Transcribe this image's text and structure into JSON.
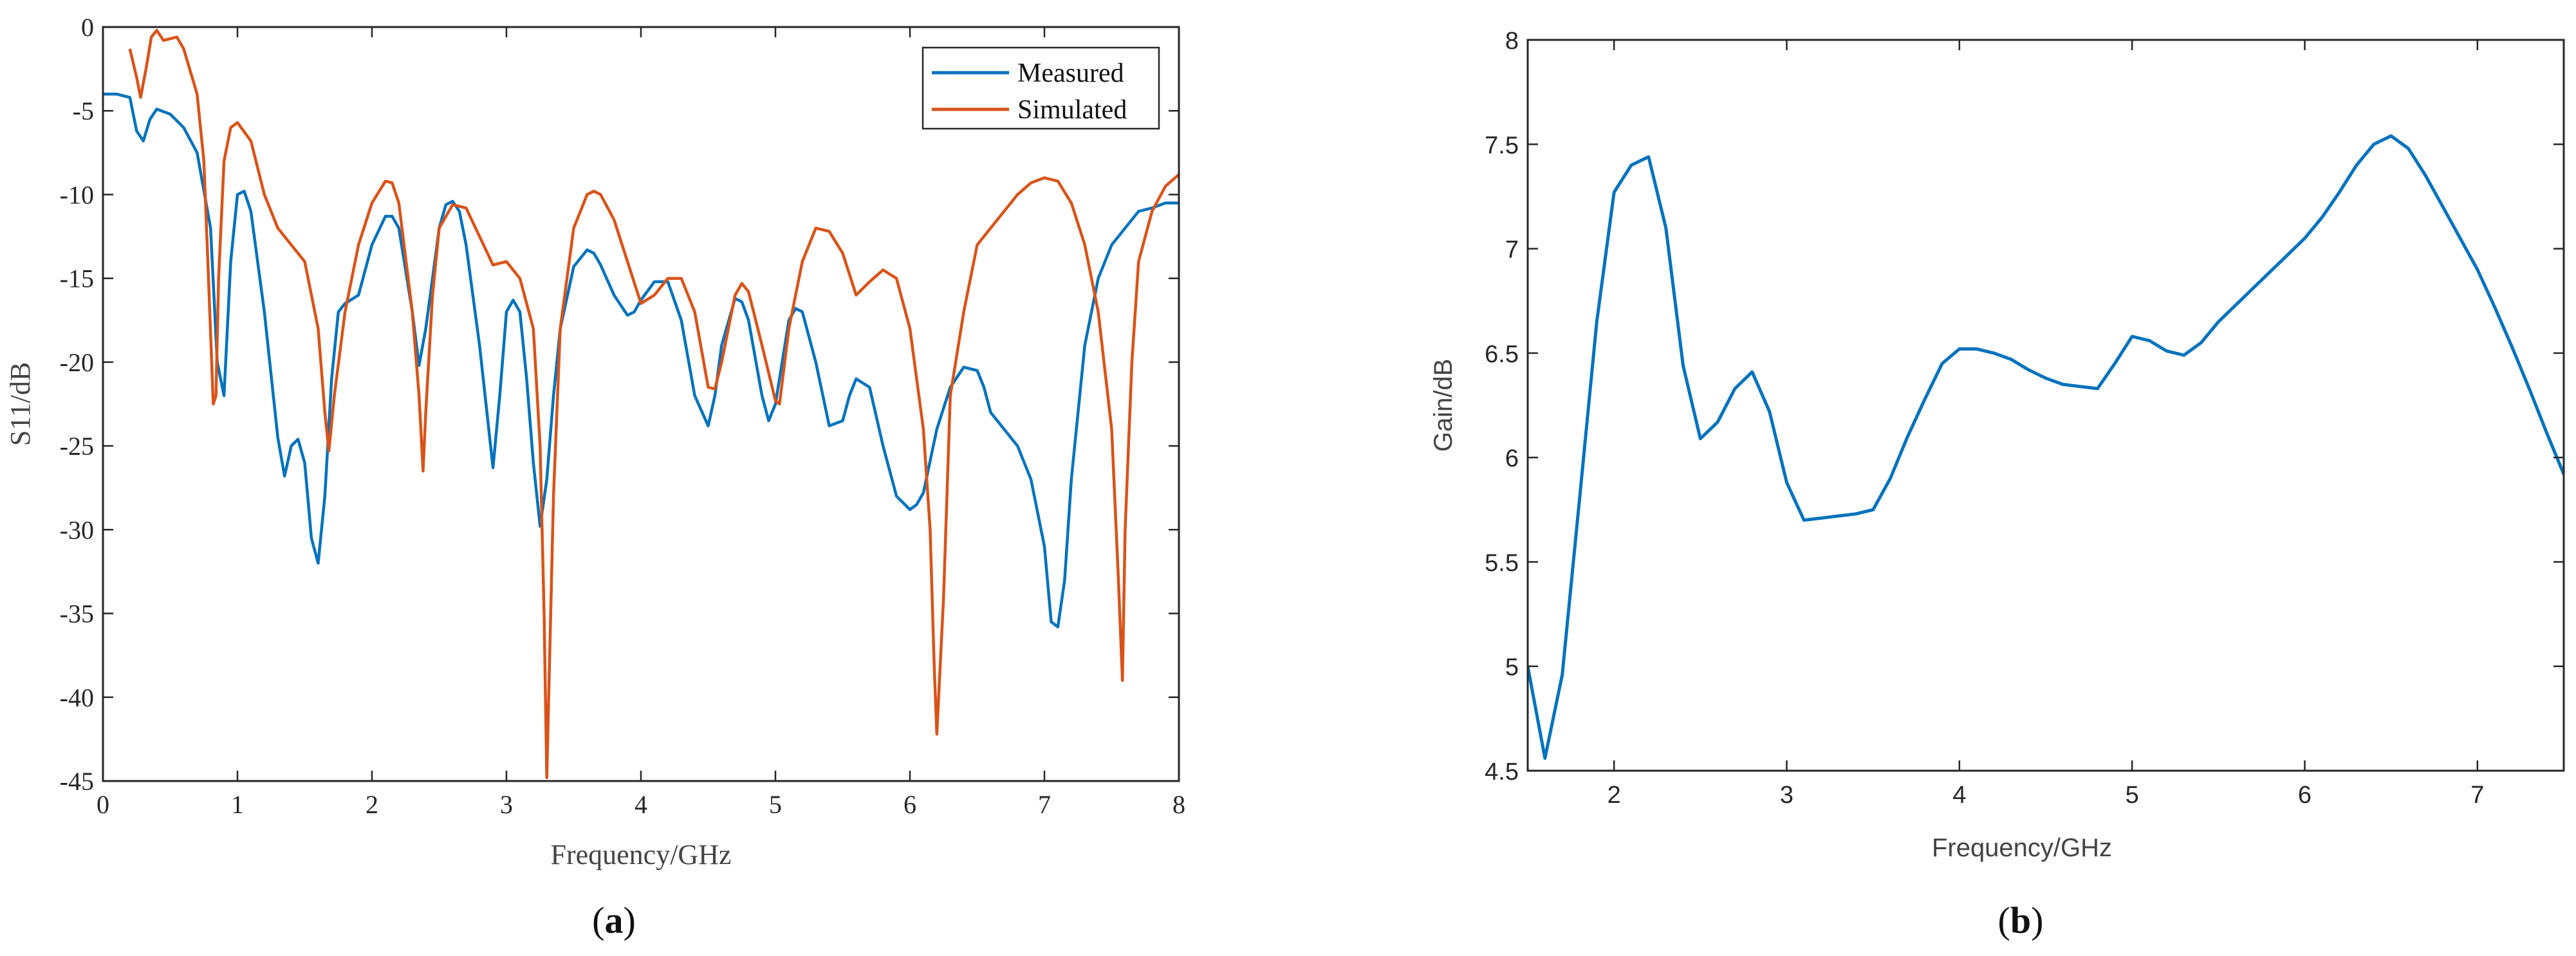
{
  "chart_data": [
    {
      "type": "line",
      "panel_caption": "(a)",
      "xlabel": "Frequency/GHz",
      "ylabel": "S11/dB",
      "xlim": [
        0,
        8
      ],
      "ylim": [
        -45,
        0
      ],
      "x_ticks": [
        "0",
        "1",
        "2",
        "3",
        "4",
        "5",
        "6",
        "7",
        "8"
      ],
      "y_ticks": [
        "0",
        "-5",
        "-10",
        "-15",
        "-20",
        "-25",
        "-30",
        "-35",
        "-40",
        "-45"
      ],
      "grid": false,
      "legend_position": "top-right",
      "series": [
        {
          "name": "Measured",
          "color": "#0072BD",
          "x": [
            0,
            0.1,
            0.2,
            0.25,
            0.3,
            0.35,
            0.4,
            0.5,
            0.6,
            0.7,
            0.8,
            0.85,
            0.9,
            0.95,
            1.0,
            1.05,
            1.1,
            1.2,
            1.3,
            1.35,
            1.4,
            1.45,
            1.5,
            1.55,
            1.6,
            1.65,
            1.7,
            1.75,
            1.8,
            1.9,
            2.0,
            2.1,
            2.15,
            2.2,
            2.3,
            2.35,
            2.4,
            2.45,
            2.5,
            2.55,
            2.6,
            2.65,
            2.7,
            2.8,
            2.9,
            2.95,
            3.0,
            3.05,
            3.1,
            3.15,
            3.2,
            3.25,
            3.3,
            3.35,
            3.4,
            3.5,
            3.6,
            3.65,
            3.7,
            3.8,
            3.9,
            3.95,
            4.0,
            4.1,
            4.2,
            4.3,
            4.4,
            4.5,
            4.55,
            4.6,
            4.7,
            4.75,
            4.8,
            4.9,
            4.95,
            5.0,
            5.1,
            5.15,
            5.2,
            5.3,
            5.4,
            5.5,
            5.55,
            5.6,
            5.7,
            5.8,
            5.9,
            6.0,
            6.05,
            6.1,
            6.2,
            6.3,
            6.4,
            6.5,
            6.55,
            6.6,
            6.7,
            6.8,
            6.9,
            7.0,
            7.05,
            7.1,
            7.15,
            7.2,
            7.3,
            7.4,
            7.5,
            7.6,
            7.7,
            7.8,
            7.9,
            8.0
          ],
          "y": [
            -4,
            -4,
            -4.2,
            -6.2,
            -6.8,
            -5.5,
            -4.9,
            -5.2,
            -6,
            -7.5,
            -12,
            -20,
            -22,
            -14,
            -10,
            -9.8,
            -11,
            -17,
            -24.5,
            -26.8,
            -25,
            -24.6,
            -26,
            -30.5,
            -32,
            -28,
            -21,
            -17,
            -16.5,
            -16,
            -13,
            -11.3,
            -11.3,
            -12,
            -17,
            -20.2,
            -18,
            -15,
            -12,
            -10.6,
            -10.4,
            -11,
            -13,
            -19,
            -26.3,
            -22,
            -17,
            -16.3,
            -17,
            -21,
            -26,
            -29.8,
            -27,
            -22,
            -18,
            -14.3,
            -13.3,
            -13.5,
            -14.2,
            -16,
            -17.2,
            -17,
            -16.3,
            -15.2,
            -15.2,
            -17.5,
            -22,
            -23.8,
            -22,
            -19,
            -16.2,
            -16.4,
            -17.5,
            -22,
            -23.5,
            -22.5,
            -17.5,
            -16.8,
            -17,
            -20,
            -23.8,
            -23.5,
            -22,
            -21,
            -21.5,
            -25,
            -28,
            -28.8,
            -28.5,
            -27.8,
            -24,
            -21.5,
            -20.3,
            -20.5,
            -21.5,
            -23,
            -24,
            -25,
            -27,
            -31,
            -35.5,
            -35.8,
            -33,
            -27,
            -19,
            -15,
            -13,
            -12,
            -11,
            -10.8,
            -10.5,
            -10.5
          ]
        },
        {
          "name": "Simulated",
          "color": "#D95319",
          "x": [
            0.2,
            0.25,
            0.28,
            0.32,
            0.36,
            0.4,
            0.45,
            0.5,
            0.55,
            0.6,
            0.7,
            0.75,
            0.78,
            0.82,
            0.84,
            0.86,
            0.9,
            0.95,
            1.0,
            1.1,
            1.2,
            1.3,
            1.4,
            1.5,
            1.6,
            1.65,
            1.68,
            1.72,
            1.8,
            1.9,
            2.0,
            2.1,
            2.15,
            2.2,
            2.3,
            2.35,
            2.38,
            2.4,
            2.45,
            2.5,
            2.6,
            2.7,
            2.8,
            2.9,
            3.0,
            3.1,
            3.2,
            3.25,
            3.28,
            3.3,
            3.35,
            3.4,
            3.5,
            3.6,
            3.65,
            3.7,
            3.8,
            3.9,
            4.0,
            4.1,
            4.2,
            4.3,
            4.4,
            4.5,
            4.55,
            4.6,
            4.7,
            4.75,
            4.8,
            4.9,
            5.0,
            5.03,
            5.1,
            5.2,
            5.3,
            5.4,
            5.5,
            5.6,
            5.7,
            5.8,
            5.9,
            6.0,
            6.1,
            6.15,
            6.18,
            6.2,
            6.25,
            6.3,
            6.4,
            6.5,
            6.6,
            6.7,
            6.8,
            6.9,
            7.0,
            7.1,
            7.2,
            7.3,
            7.4,
            7.5,
            7.55,
            7.58,
            7.6,
            7.65,
            7.7,
            7.8,
            7.9,
            8.0
          ],
          "y": [
            -1.3,
            -3,
            -4.2,
            -2.5,
            -0.6,
            -0.2,
            -0.8,
            -0.7,
            -0.6,
            -1.3,
            -4,
            -8,
            -14,
            -22.5,
            -22,
            -15,
            -8,
            -6,
            -5.7,
            -6.8,
            -10,
            -12,
            -13,
            -14,
            -18,
            -23,
            -25.3,
            -22,
            -17,
            -13,
            -10.5,
            -9.2,
            -9.3,
            -10.5,
            -17,
            -22,
            -26.5,
            -23,
            -16,
            -12,
            -10.6,
            -10.8,
            -12.5,
            -14.2,
            -14,
            -15,
            -18,
            -25,
            -35,
            -44.8,
            -28,
            -18,
            -12,
            -10,
            -9.8,
            -10,
            -11.5,
            -14,
            -16.5,
            -16,
            -15,
            -15,
            -17,
            -21.5,
            -21.6,
            -20,
            -16,
            -15.3,
            -15.8,
            -19,
            -22.3,
            -22.5,
            -18,
            -14,
            -12,
            -12.2,
            -13.5,
            -16,
            -15.2,
            -14.5,
            -15,
            -18,
            -24,
            -30,
            -38,
            -42.2,
            -34,
            -22,
            -17,
            -13,
            -12,
            -11,
            -10,
            -9.3,
            -9,
            -9.2,
            -10.5,
            -13,
            -17,
            -24,
            -33,
            -39,
            -30,
            -20,
            -14,
            -11,
            -9.5,
            -8.8
          ]
        }
      ]
    },
    {
      "type": "line",
      "panel_caption": "(b)",
      "xlabel": "Frequency/GHz",
      "ylabel": "Gain/dB",
      "xlim": [
        1.5,
        7.5
      ],
      "ylim": [
        4.5,
        8
      ],
      "x_ticks": [
        "2",
        "3",
        "4",
        "5",
        "6",
        "7"
      ],
      "y_ticks": [
        "4.5",
        "5",
        "5.5",
        "6",
        "6.5",
        "7",
        "7.5",
        "8"
      ],
      "grid": false,
      "series": [
        {
          "color": "#0072BD",
          "x": [
            1.5,
            1.6,
            1.7,
            1.8,
            1.9,
            2.0,
            2.1,
            2.2,
            2.3,
            2.4,
            2.5,
            2.6,
            2.7,
            2.8,
            2.9,
            3.0,
            3.1,
            3.2,
            3.3,
            3.4,
            3.5,
            3.6,
            3.7,
            3.8,
            3.9,
            4.0,
            4.1,
            4.2,
            4.3,
            4.4,
            4.5,
            4.6,
            4.7,
            4.8,
            4.9,
            5.0,
            5.1,
            5.2,
            5.3,
            5.4,
            5.5,
            5.6,
            5.7,
            5.8,
            5.9,
            6.0,
            6.1,
            6.2,
            6.3,
            6.4,
            6.5,
            6.6,
            6.7,
            6.8,
            6.9,
            7.0,
            7.1,
            7.2,
            7.3,
            7.4,
            7.5
          ],
          "y": [
            5.0,
            4.56,
            4.96,
            5.8,
            6.65,
            7.27,
            7.4,
            7.44,
            7.1,
            6.44,
            6.09,
            6.17,
            6.33,
            6.41,
            6.22,
            5.88,
            5.7,
            5.71,
            5.72,
            5.73,
            5.75,
            5.9,
            6.1,
            6.28,
            6.45,
            6.52,
            6.52,
            6.5,
            6.47,
            6.42,
            6.38,
            6.35,
            6.34,
            6.33,
            6.45,
            6.58,
            6.56,
            6.51,
            6.49,
            6.55,
            6.65,
            6.73,
            6.81,
            6.89,
            6.97,
            7.05,
            7.15,
            7.27,
            7.4,
            7.5,
            7.54,
            7.48,
            7.35,
            7.2,
            7.05,
            6.9,
            6.72,
            6.53,
            6.33,
            6.12,
            5.92
          ]
        }
      ]
    }
  ]
}
